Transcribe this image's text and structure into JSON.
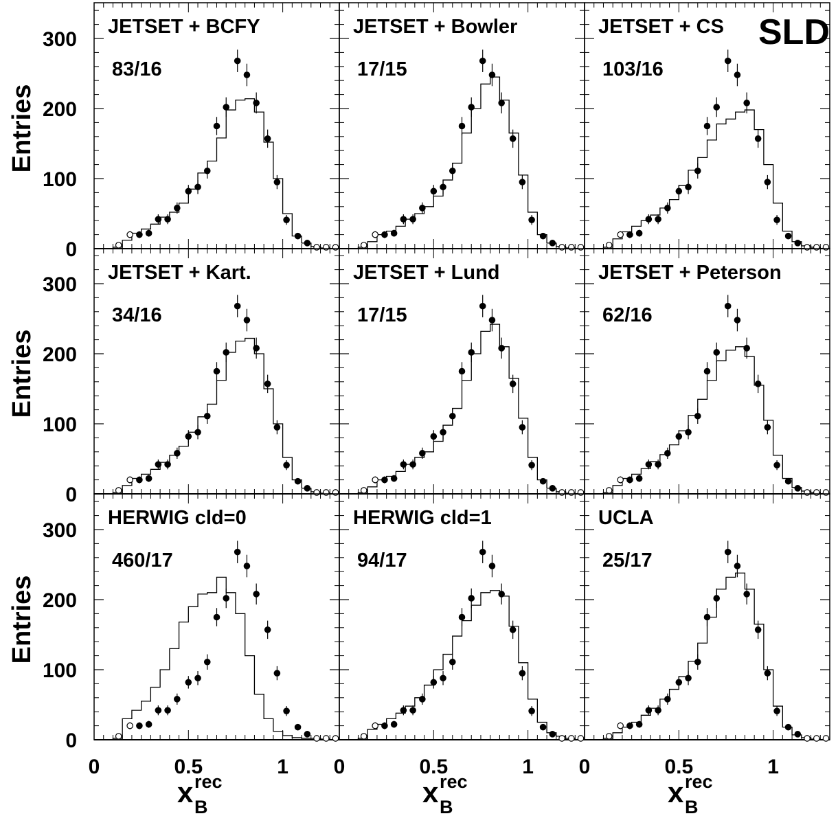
{
  "figure": {
    "experiment_label": "SLD",
    "ylabel": "Entries",
    "xlabel_main": "x",
    "xlabel_sub": "B",
    "xlabel_sup": "rec"
  },
  "chart_data": {
    "type": "scatter",
    "layout": "3x3 grid of histogram panels (data points with error bars vs. model step histogram)",
    "x_range": [
      0,
      1.3
    ],
    "y_range": [
      0,
      350
    ],
    "x_ticks": [
      0,
      0.5,
      1
    ],
    "x_tick_labels": [
      "0",
      "0.5",
      "1"
    ],
    "y_ticks": [
      0,
      100,
      200,
      300
    ],
    "y_tick_labels": [
      "0",
      "100",
      "200",
      "300"
    ],
    "ylabel": "Entries",
    "bin_edges": [
      0.1,
      0.15,
      0.2,
      0.25,
      0.3,
      0.35,
      0.4,
      0.45,
      0.5,
      0.55,
      0.6,
      0.65,
      0.7,
      0.75,
      0.8,
      0.85,
      0.9,
      0.95,
      1.0,
      1.05,
      1.1,
      1.15,
      1.2,
      1.25,
      1.3
    ],
    "data_points": {
      "x": [
        0.13,
        0.19,
        0.24,
        0.29,
        0.34,
        0.39,
        0.44,
        0.5,
        0.55,
        0.6,
        0.65,
        0.7,
        0.76,
        0.81,
        0.86,
        0.92,
        0.97,
        1.02,
        1.08,
        1.13,
        1.18,
        1.23,
        1.28
      ],
      "y": [
        5,
        20,
        20,
        22,
        42,
        42,
        58,
        82,
        88,
        111,
        175,
        202,
        268,
        248,
        208,
        157,
        95,
        41,
        18,
        8,
        2,
        2,
        2
      ],
      "err": [
        3,
        5,
        5,
        5,
        7,
        7,
        8,
        9,
        10,
        11,
        13,
        14,
        16,
        16,
        15,
        13,
        10,
        7,
        4,
        3,
        1,
        1,
        1
      ],
      "open_marker": [
        true,
        true,
        false,
        false,
        false,
        false,
        false,
        false,
        false,
        false,
        false,
        false,
        false,
        false,
        false,
        false,
        false,
        false,
        false,
        false,
        true,
        true,
        true
      ]
    },
    "panels": [
      {
        "model": "JETSET + BCFY",
        "chi2": "83/16",
        "mc": [
          2,
          12,
          22,
          28,
          35,
          45,
          52,
          65,
          85,
          108,
          125,
          158,
          198,
          212,
          214,
          195,
          152,
          100,
          50,
          18,
          8,
          3,
          1,
          0
        ]
      },
      {
        "model": "JETSET + Bowler",
        "chi2": "17/15",
        "mc": [
          2,
          10,
          20,
          25,
          32,
          42,
          50,
          60,
          75,
          98,
          122,
          165,
          200,
          235,
          245,
          212,
          165,
          105,
          52,
          20,
          8,
          3,
          1,
          0
        ]
      },
      {
        "model": "JETSET + CS",
        "chi2": "103/16",
        "mc": [
          2,
          14,
          24,
          32,
          40,
          48,
          58,
          70,
          90,
          112,
          130,
          155,
          178,
          185,
          195,
          198,
          170,
          120,
          65,
          25,
          10,
          4,
          2,
          0
        ]
      },
      {
        "model": "JETSET + Kart.",
        "chi2": "34/16",
        "mc": [
          2,
          12,
          22,
          28,
          35,
          45,
          55,
          68,
          88,
          110,
          128,
          162,
          202,
          218,
          222,
          200,
          150,
          100,
          52,
          20,
          8,
          3,
          1,
          0
        ]
      },
      {
        "model": "JETSET + Lund",
        "chi2": "17/15",
        "mc": [
          2,
          10,
          20,
          25,
          32,
          42,
          52,
          60,
          75,
          98,
          122,
          162,
          200,
          232,
          242,
          210,
          165,
          108,
          52,
          20,
          8,
          3,
          1,
          0
        ]
      },
      {
        "model": "JETSET + Peterson",
        "chi2": "62/16",
        "mc": [
          2,
          12,
          22,
          28,
          36,
          46,
          56,
          70,
          90,
          112,
          135,
          162,
          190,
          205,
          210,
          196,
          155,
          105,
          55,
          22,
          9,
          4,
          2,
          0
        ]
      },
      {
        "model": "HERWIG cld=0",
        "chi2": "460/17",
        "mc": [
          2,
          30,
          42,
          55,
          75,
          100,
          130,
          168,
          190,
          208,
          210,
          232,
          210,
          180,
          120,
          65,
          30,
          12,
          6,
          3,
          2,
          2,
          1,
          0
        ]
      },
      {
        "model": "HERWIG cld=1",
        "chi2": "94/17",
        "mc": [
          2,
          15,
          22,
          30,
          38,
          48,
          60,
          78,
          100,
          122,
          148,
          170,
          192,
          210,
          213,
          205,
          162,
          110,
          58,
          25,
          10,
          5,
          2,
          0
        ]
      },
      {
        "model": "UCLA",
        "chi2": "25/17",
        "mc": [
          2,
          10,
          18,
          25,
          35,
          45,
          58,
          72,
          90,
          112,
          138,
          175,
          215,
          232,
          238,
          215,
          165,
          100,
          48,
          18,
          7,
          3,
          1,
          0
        ]
      }
    ]
  }
}
